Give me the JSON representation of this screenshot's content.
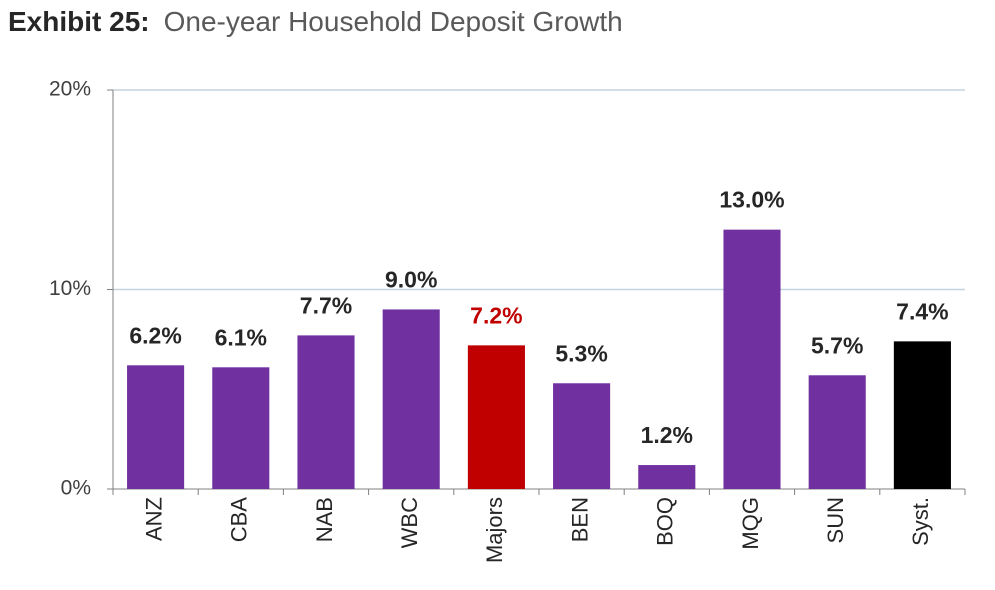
{
  "chart_data": {
    "type": "bar",
    "exhibit": "Exhibit 25:",
    "title": "One-year Household Deposit Growth",
    "categories": [
      "ANZ",
      "CBA",
      "NAB",
      "WBC",
      "Majors",
      "BEN",
      "BOQ",
      "MQG",
      "SUN",
      "Syst."
    ],
    "values": [
      6.2,
      6.1,
      7.7,
      9.0,
      7.2,
      5.3,
      1.2,
      13.0,
      5.7,
      7.4
    ],
    "value_labels": [
      "6.2%",
      "6.1%",
      "7.7%",
      "9.0%",
      "7.2%",
      "5.3%",
      "1.2%",
      "13.0%",
      "5.7%",
      "7.4%"
    ],
    "colors": [
      "#7030a0",
      "#7030a0",
      "#7030a0",
      "#7030a0",
      "#c00000",
      "#7030a0",
      "#7030a0",
      "#7030a0",
      "#7030a0",
      "#000000"
    ],
    "label_colors": [
      "#262626",
      "#262626",
      "#262626",
      "#262626",
      "#c00000",
      "#262626",
      "#262626",
      "#262626",
      "#262626",
      "#262626"
    ],
    "ylim": [
      0,
      20
    ],
    "yticks": [
      {
        "value": 0,
        "label": "0%"
      },
      {
        "value": 10,
        "label": "10%"
      },
      {
        "value": 20,
        "label": "20%"
      }
    ],
    "grid": true
  }
}
